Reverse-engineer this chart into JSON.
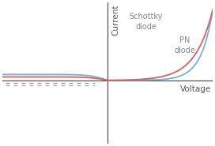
{
  "title": "",
  "xlabel": "Voltage",
  "ylabel": "Current",
  "background_color": "#ffffff",
  "schottky_color": "#7bafd4",
  "pn_color": "#d46060",
  "schottky_label": "Schottky\ndiode",
  "pn_label": "PN\ndiode",
  "axis_color": "#555555",
  "label_fontsize": 7.5,
  "annotation_fontsize": 7.0,
  "xlim": [
    -1.5,
    1.5
  ],
  "ylim": [
    -1.3,
    1.6
  ],
  "schottky_fwd_scale": 6.0,
  "pn_fwd_scale": 4.0,
  "schottky_rev_sat": -0.12,
  "pn_rev_sat": -0.07
}
